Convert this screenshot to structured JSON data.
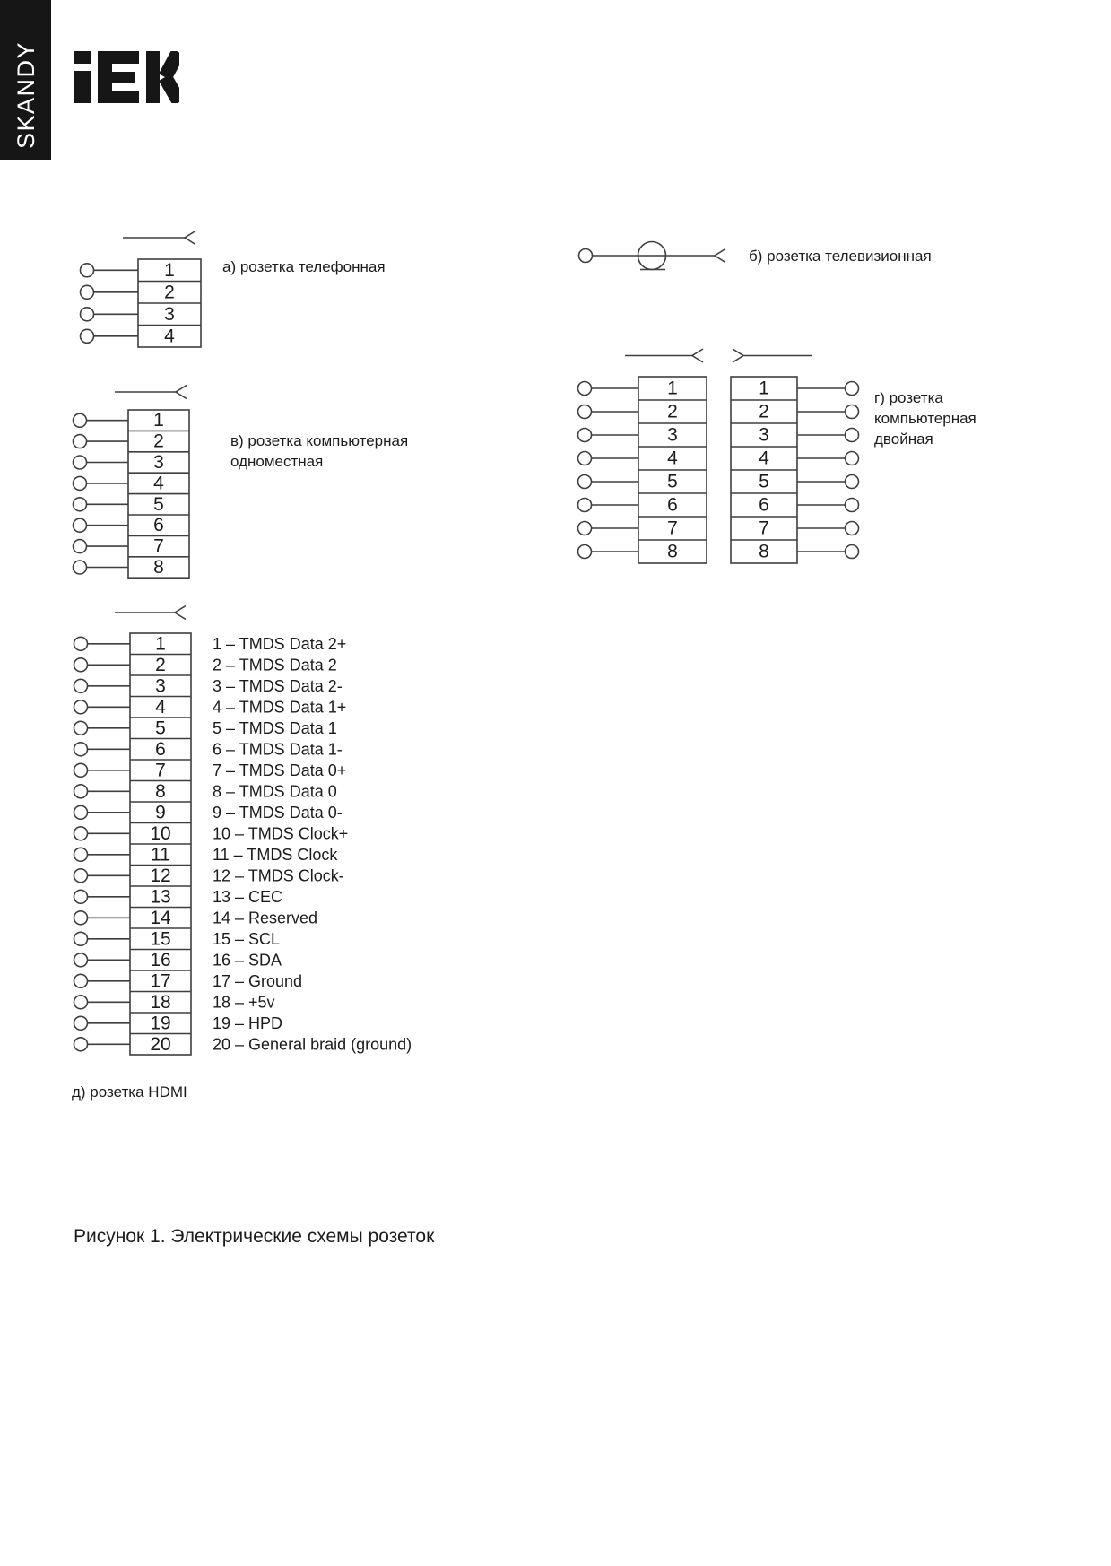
{
  "brand": {
    "sidebar_label": "SKANDY",
    "logo_text": "iEK"
  },
  "colors": {
    "line": "#3f3f3f",
    "text": "#1c1c1c",
    "sidebar_bg": "#161616",
    "background": "#ffffff"
  },
  "diagrams": {
    "telephone": {
      "label": "а) розетка телефонная",
      "pins": [
        "1",
        "2",
        "3",
        "4"
      ]
    },
    "tv": {
      "label": "б) розетка телевизионная"
    },
    "computer_single": {
      "label_lines": [
        "в) розетка компьютерная",
        "одноместная"
      ],
      "pins": [
        "1",
        "2",
        "3",
        "4",
        "5",
        "6",
        "7",
        "8"
      ]
    },
    "computer_double": {
      "label_lines": [
        "г) розетка",
        "компьютерная",
        "двойная"
      ],
      "left_pins": [
        "1",
        "2",
        "3",
        "4",
        "5",
        "6",
        "7",
        "8"
      ],
      "right_pins": [
        "1",
        "2",
        "3",
        "4",
        "5",
        "6",
        "7",
        "8"
      ]
    },
    "hdmi": {
      "label": "д) розетка HDMI",
      "pins": [
        {
          "pin": "1",
          "desc": "1 – TMDS Data 2+"
        },
        {
          "pin": "2",
          "desc": "2 – TMDS Data 2"
        },
        {
          "pin": "3",
          "desc": "3 – TMDS Data 2-"
        },
        {
          "pin": "4",
          "desc": "4 – TMDS Data 1+"
        },
        {
          "pin": "5",
          "desc": "5 – TMDS Data 1"
        },
        {
          "pin": "6",
          "desc": "6 – TMDS Data 1-"
        },
        {
          "pin": "7",
          "desc": "7 – TMDS Data 0+"
        },
        {
          "pin": "8",
          "desc": "8 – TMDS Data 0"
        },
        {
          "pin": "9",
          "desc": "9 – TMDS Data 0-"
        },
        {
          "pin": "10",
          "desc": "10 – TMDS Clock+"
        },
        {
          "pin": "11",
          "desc": "11 – TMDS Clock"
        },
        {
          "pin": "12",
          "desc": "12 – TMDS Clock-"
        },
        {
          "pin": "13",
          "desc": "13 – CEC"
        },
        {
          "pin": "14",
          "desc": "14 – Reserved"
        },
        {
          "pin": "15",
          "desc": "15 – SCL"
        },
        {
          "pin": "16",
          "desc": "16 – SDA"
        },
        {
          "pin": "17",
          "desc": "17 – Ground"
        },
        {
          "pin": "18",
          "desc": "18 – +5v"
        },
        {
          "pin": "19",
          "desc": "19 – HPD"
        },
        {
          "pin": "20",
          "desc": "20 – General braid (ground)"
        }
      ]
    }
  },
  "figure_caption": "Рисунок 1. Электрические схемы розеток"
}
